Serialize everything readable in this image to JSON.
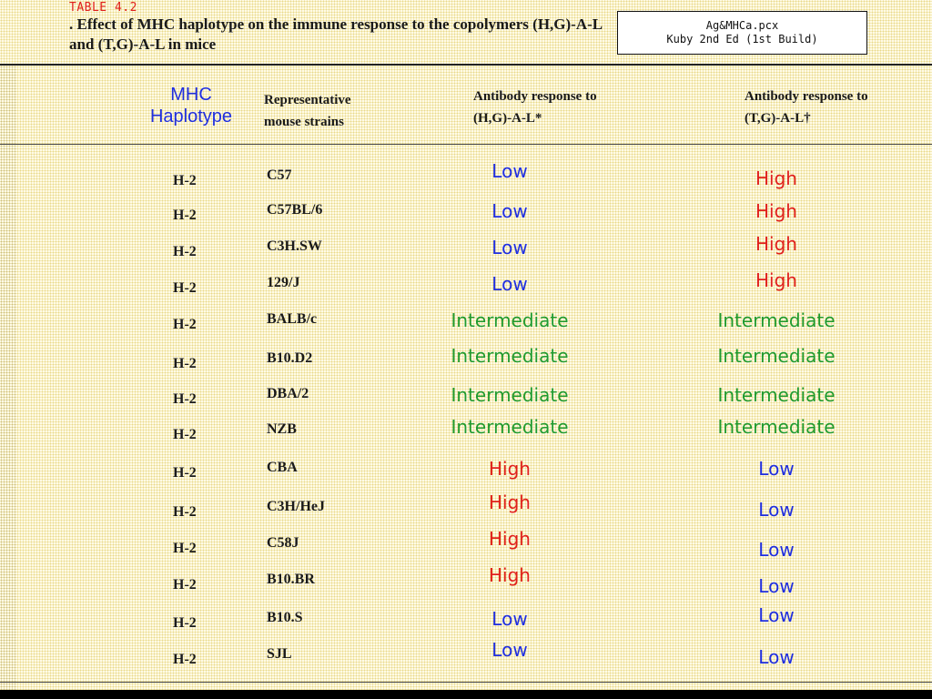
{
  "table_label": "TABLE 4.2",
  "caption": ". Effect of MHC haplotype on the immune response to the copolymers (H,G)-A-L and (T,G)-A-L in mice",
  "reference_box": {
    "line1": "Ag&MHCa.pcx",
    "line2": "Kuby 2nd Ed (1st Build)"
  },
  "headers": {
    "mhc_line1": "MHC",
    "mhc_line2": "Haplotype",
    "strain_line1": "Representative",
    "strain_line2": "mouse strains",
    "hg_line1": "Antibody response to",
    "hg_line2": "(H,G)-A-L*",
    "tg_line1": "Antibody response to",
    "tg_line2": "(T,G)-A-L†"
  },
  "colors": {
    "Low": "#1f2ee0",
    "High": "#e0201c",
    "Intermediate": "#1f9a2e"
  },
  "rows": [
    {
      "haplotype": "H-2",
      "strain": "C57",
      "hg": "Low",
      "tg": "High"
    },
    {
      "haplotype": "H-2",
      "strain": "C57BL/6",
      "hg": "Low",
      "tg": "High"
    },
    {
      "haplotype": "H-2",
      "strain": "C3H.SW",
      "hg": "Low",
      "tg": "High"
    },
    {
      "haplotype": "H-2",
      "strain": "129/J",
      "hg": "Low",
      "tg": "High"
    },
    {
      "haplotype": "H-2",
      "strain": "BALB/c",
      "hg": "Intermediate",
      "tg": "Intermediate"
    },
    {
      "haplotype": "H-2",
      "strain": "B10.D2",
      "hg": "Intermediate",
      "tg": "Intermediate"
    },
    {
      "haplotype": "H-2",
      "strain": "DBA/2",
      "hg": "Intermediate",
      "tg": "Intermediate"
    },
    {
      "haplotype": "H-2",
      "strain": "NZB",
      "hg": "Intermediate",
      "tg": "Intermediate"
    },
    {
      "haplotype": "H-2",
      "strain": "CBA",
      "hg": "High",
      "tg": "Low"
    },
    {
      "haplotype": "H-2",
      "strain": "C3H/HeJ",
      "hg": "High",
      "tg": "Low"
    },
    {
      "haplotype": "H-2",
      "strain": "C58J",
      "hg": "High",
      "tg": "Low"
    },
    {
      "haplotype": "H-2",
      "strain": "B10.BR",
      "hg": "High",
      "tg": "Low"
    },
    {
      "haplotype": "H-2",
      "strain": "B10.S",
      "hg": "Low",
      "tg": "Low"
    },
    {
      "haplotype": "H-2",
      "strain": "SJL",
      "hg": "Low",
      "tg": "Low"
    }
  ]
}
